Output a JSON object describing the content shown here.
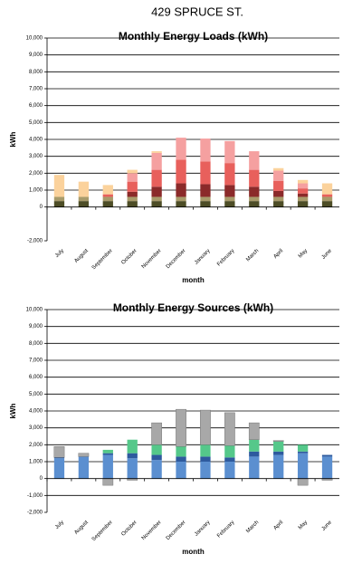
{
  "page_title": "429 SPRUCE ST.",
  "chart_data": [
    {
      "type": "stacked-bar",
      "title": "Monthly Energy Loads (kWh)",
      "x_label": "month",
      "y_label": "kWh",
      "categories": [
        "July",
        "August",
        "September",
        "October",
        "November",
        "December",
        "January",
        "February",
        "March",
        "April",
        "May",
        "June"
      ],
      "ylim": [
        -2000,
        10000
      ],
      "yticks": [
        {
          "value": -2000,
          "label": "-2,000"
        },
        0,
        {
          "value": 1000,
          "label": "1,000"
        },
        {
          "value": 2000,
          "label": "2,000"
        },
        {
          "value": 3000,
          "label": "3,000"
        },
        {
          "value": 4000,
          "label": "4,000"
        },
        {
          "value": 5000,
          "label": "5,000"
        },
        {
          "value": 6000,
          "label": "6,000"
        },
        {
          "value": 7000,
          "label": "7,000"
        },
        {
          "value": 8000,
          "label": "8,000"
        },
        {
          "value": 9000,
          "label": "9,000"
        },
        {
          "value": 10000,
          "label": "10,000"
        }
      ],
      "grid": true,
      "series": [
        {
          "color": "#4d4d26",
          "values": [
            350,
            350,
            350,
            350,
            350,
            350,
            350,
            350,
            350,
            350,
            350,
            350
          ]
        },
        {
          "color": "#a89b6b",
          "values": [
            250,
            250,
            250,
            250,
            250,
            250,
            250,
            250,
            250,
            250,
            250,
            250
          ]
        },
        {
          "color": "#8b2a2a",
          "values": [
            0,
            0,
            0,
            300,
            600,
            800,
            750,
            700,
            600,
            350,
            200,
            0
          ]
        },
        {
          "color": "#e8605c",
          "values": [
            0,
            0,
            150,
            600,
            1000,
            1400,
            1350,
            1300,
            1000,
            600,
            300,
            150
          ]
        },
        {
          "color": "#f5a0a0",
          "values": [
            0,
            0,
            0,
            500,
            1000,
            1300,
            1350,
            1300,
            1100,
            600,
            300,
            0
          ]
        },
        {
          "color": "#fbd29c",
          "values": [
            1300,
            900,
            550,
            200,
            100,
            0,
            0,
            0,
            0,
            150,
            200,
            650
          ]
        }
      ]
    },
    {
      "type": "stacked-bar",
      "title": "Monthly Energy Sources (kWh)",
      "x_label": "month",
      "y_label": "kWh",
      "categories": [
        "July",
        "August",
        "September",
        "October",
        "November",
        "December",
        "January",
        "February",
        "March",
        "April",
        "May",
        "June"
      ],
      "ylim": [
        -2000,
        10000
      ],
      "yticks": [
        {
          "value": -2000,
          "label": "-2,000"
        },
        {
          "value": -1000,
          "label": "-1,000"
        },
        0,
        {
          "value": 1000,
          "label": "1,000"
        },
        {
          "value": 2000,
          "label": "2,000"
        },
        {
          "value": 3000,
          "label": "3,000"
        },
        {
          "value": 4000,
          "label": "4,000"
        },
        {
          "value": 5000,
          "label": "5,000"
        },
        {
          "value": 6000,
          "label": "6,000"
        },
        {
          "value": 7000,
          "label": "7,000"
        },
        {
          "value": 8000,
          "label": "8,000"
        },
        {
          "value": 9000,
          "label": "9,000"
        },
        {
          "value": 10000,
          "label": "10,000"
        }
      ],
      "grid": true,
      "series": [
        {
          "color": "#5b8fd0",
          "values": [
            1200,
            1300,
            1400,
            1200,
            1100,
            1000,
            1000,
            1000,
            1300,
            1400,
            1500,
            1300
          ]
        },
        {
          "color": "#2e5a9e",
          "values": [
            50,
            0,
            100,
            300,
            300,
            300,
            300,
            250,
            300,
            200,
            100,
            100
          ]
        },
        {
          "color": "#55c88a",
          "values": [
            0,
            0,
            200,
            800,
            600,
            600,
            700,
            700,
            700,
            600,
            400,
            0
          ]
        },
        {
          "color": "#a8a8a8",
          "values": [
            650,
            200,
            -400,
            -100,
            1300,
            2200,
            2050,
            1950,
            1000,
            50,
            -400,
            -100
          ]
        }
      ]
    }
  ]
}
